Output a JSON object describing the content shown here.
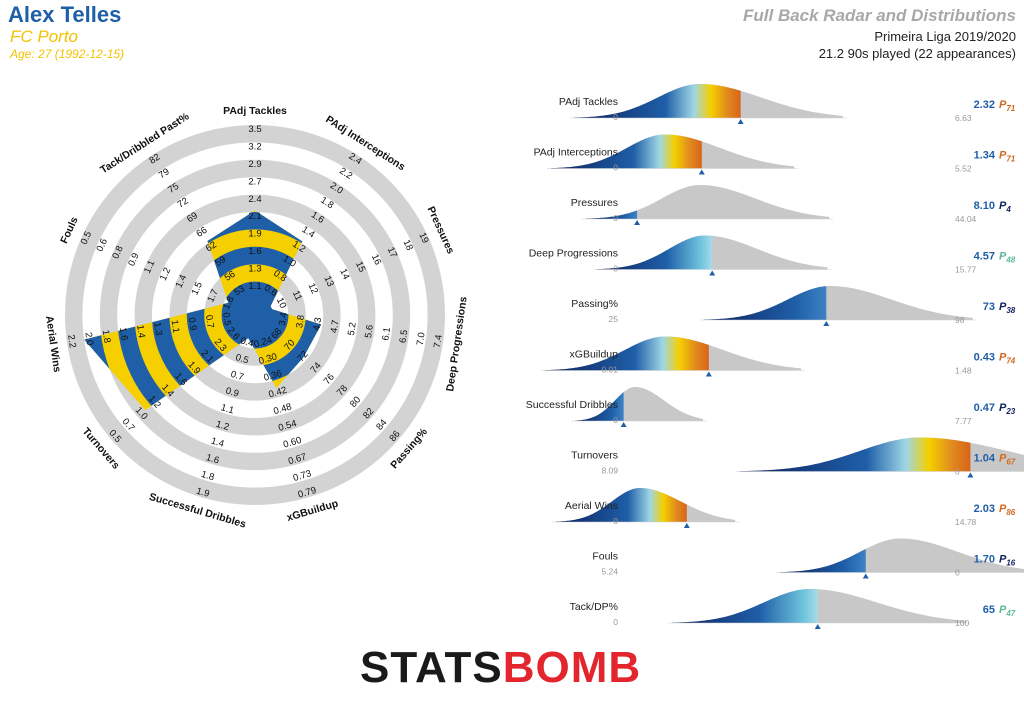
{
  "header": {
    "player": "Alex Telles",
    "team": "FC Porto",
    "age": "Age: 27 (1992-12-15)",
    "title": "Full Back Radar and Distributions",
    "league": "Primeira Liga 2019/2020",
    "played": "21.2 90s played (22 appearances)"
  },
  "logo": {
    "text_dark": "STATS",
    "text_red": "BOMB"
  },
  "colors": {
    "blue": "#1f5fa8",
    "yellow": "#f5cf00",
    "ring": "#d3d3d3",
    "dist_grey": "#c8c8c8",
    "navy": "#0d1f5c",
    "percentile_high": "#d2691e",
    "percentile_mid": "#5cb89a",
    "percentile_low": "#1f5fa8",
    "logo_red": "#e3252d",
    "logo_dark": "#1a1a1a"
  },
  "chart_data": [
    {
      "type": "radar",
      "axes": [
        {
          "label": "PAdj Tackles",
          "ticks": [
            "3.5",
            "3.2",
            "2.9",
            "2.7",
            "2.4",
            "2.1",
            "1.9",
            "1.6",
            "1.3",
            "1.1"
          ],
          "value": 2.32
        },
        {
          "label": "PAdj Interceptions",
          "ticks": [
            "2.4",
            "2.2",
            "2.0",
            "1.8",
            "1.6",
            "1.4",
            "1.2",
            "1.0",
            "0.8",
            "0.6"
          ],
          "value": 1.34
        },
        {
          "label": "Pressures",
          "ticks": [
            "19",
            "18",
            "17",
            "16",
            "15",
            "14",
            "13",
            "12",
            "11",
            "10"
          ],
          "value": 8.1
        },
        {
          "label": "Deep Progressions",
          "ticks": [
            "7.4",
            "7.0",
            "6.5",
            "6.1",
            "5.6",
            "5.2",
            "4.7",
            "4.3",
            "3.8",
            "3.4"
          ],
          "value": 4.57
        },
        {
          "label": "Passing%",
          "ticks": [
            "86",
            "84",
            "82",
            "80",
            "78",
            "76",
            "74",
            "72",
            "70",
            "68"
          ],
          "value": 73
        },
        {
          "label": "xGBuildup",
          "ticks": [
            "0.79",
            "0.73",
            "0.67",
            "0.60",
            "0.54",
            "0.48",
            "0.42",
            "0.36",
            "0.30",
            "0.24"
          ],
          "value": 0.43
        },
        {
          "label": "Successful Dribbles",
          "ticks": [
            "1.9",
            "1.8",
            "1.6",
            "1.4",
            "1.2",
            "1.1",
            "0.9",
            "0.7",
            "0.5",
            "0.4"
          ],
          "value": 0.47
        },
        {
          "label": "Turnovers",
          "ticks": [
            "0.5",
            "0.7",
            "1.0",
            "1.2",
            "1.4",
            "1.6",
            "1.9",
            "2.1",
            "2.3",
            "2.6"
          ],
          "value": 1.04
        },
        {
          "label": "Aerial Wins",
          "ticks": [
            "2.2",
            "2.0",
            "1.8",
            "1.6",
            "1.4",
            "1.3",
            "1.1",
            "0.9",
            "0.7",
            "0.5"
          ],
          "value": 2.03
        },
        {
          "label": "Fouls",
          "ticks": [
            "0.5",
            "0.6",
            "0.8",
            "0.9",
            "1.1",
            "1.2",
            "1.4",
            "1.5",
            "1.7",
            "1.8"
          ],
          "value": 1.7
        },
        {
          "label": "Tack/Dribbled Past%",
          "ticks": [
            "82",
            "79",
            "75",
            "72",
            "69",
            "66",
            "62",
            "59",
            "56",
            "53"
          ],
          "value": 65
        }
      ]
    },
    {
      "type": "distribution",
      "rows": [
        {
          "label": "PAdj Tackles",
          "min": "0",
          "max": "6.63",
          "value": "2.32",
          "percentile": "71",
          "pct_color": "high"
        },
        {
          "label": "PAdj Interceptions",
          "min": "0",
          "max": "5.52",
          "value": "1.34",
          "percentile": "71",
          "pct_color": "high"
        },
        {
          "label": "Pressures",
          "min": "0",
          "max": "44.04",
          "value": "8.10",
          "percentile": "4",
          "pct_color": "low"
        },
        {
          "label": "Deep Progressions",
          "min": "0",
          "max": "15.77",
          "value": "4.57",
          "percentile": "48",
          "pct_color": "mid"
        },
        {
          "label": "Passing%",
          "min": "25",
          "max": "98",
          "value": "73",
          "percentile": "38",
          "pct_color": "low"
        },
        {
          "label": "xGBuildup",
          "min": "0.01",
          "max": "1.48",
          "value": "0.43",
          "percentile": "74",
          "pct_color": "high"
        },
        {
          "label": "Successful Dribbles",
          "min": "0",
          "max": "7.77",
          "value": "0.47",
          "percentile": "23",
          "pct_color": "low"
        },
        {
          "label": "Turnovers",
          "min": "8.09",
          "max": "0",
          "value": "1.04",
          "percentile": "67",
          "pct_color": "high"
        },
        {
          "label": "Aerial Wins",
          "min": "0",
          "max": "14.78",
          "value": "2.03",
          "percentile": "86",
          "pct_color": "high"
        },
        {
          "label": "Fouls",
          "min": "5.24",
          "max": "0",
          "value": "1.70",
          "percentile": "16",
          "pct_color": "low"
        },
        {
          "label": "Tack/DP%",
          "min": "0",
          "max": "100",
          "value": "65",
          "percentile": "47",
          "pct_color": "mid"
        }
      ]
    }
  ]
}
